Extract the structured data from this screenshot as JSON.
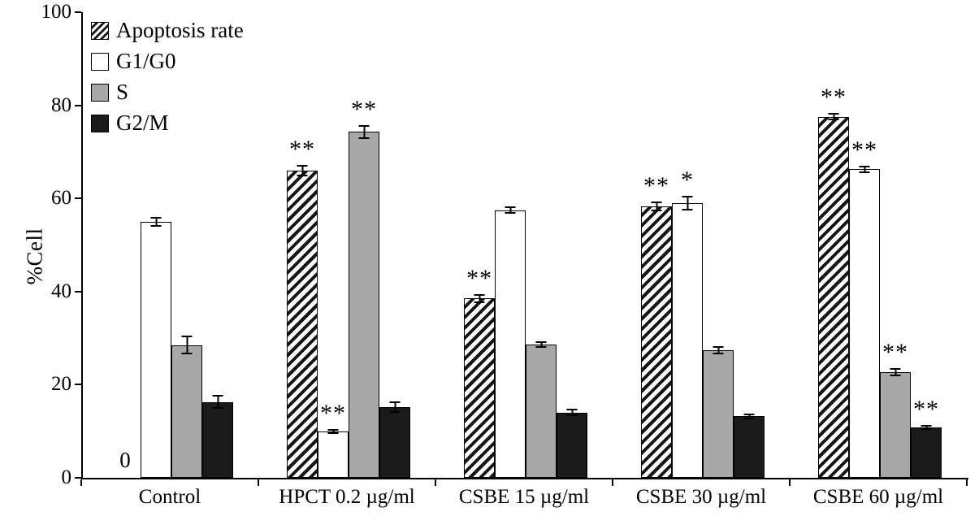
{
  "chart_data": {
    "type": "bar",
    "title": "",
    "xlabel": "",
    "ylabel": "%Cell",
    "ylim": [
      0,
      100
    ],
    "yticks": [
      0,
      20,
      40,
      60,
      80,
      100
    ],
    "grid": false,
    "legend_position": "top-left-inside",
    "categories": [
      "Control",
      "HPCT 0.2 µg/ml",
      "CSBE 15 µg/ml",
      "CSBE 30 µg/ml",
      "CSBE 60 µg/ml"
    ],
    "series": [
      {
        "name": "Apoptosis rate",
        "style": "hatched",
        "values": [
          0,
          66,
          38.5,
          58.3,
          77.5
        ],
        "errors": [
          0,
          1.2,
          1.0,
          1.0,
          0.8
        ],
        "sig": [
          "",
          "**",
          "**",
          "**",
          "**"
        ]
      },
      {
        "name": "G1/G0",
        "style": "white",
        "values": [
          55,
          10,
          57.5,
          59,
          66.3
        ],
        "errors": [
          1.0,
          0.5,
          0.8,
          1.5,
          0.8
        ],
        "sig": [
          "",
          "**",
          "",
          "*",
          "**"
        ]
      },
      {
        "name": "S",
        "style": "gray",
        "values": [
          28.5,
          74.3,
          28.6,
          27.4,
          22.7
        ],
        "errors": [
          2.0,
          1.5,
          0.7,
          0.8,
          0.8
        ],
        "sig": [
          "",
          "**",
          "",
          "",
          "**"
        ]
      },
      {
        "name": "G2/M",
        "style": "black",
        "values": [
          16.3,
          15.2,
          14,
          13.2,
          10.8
        ],
        "errors": [
          1.5,
          1.2,
          0.8,
          0.6,
          0.5
        ],
        "sig": [
          "",
          "",
          "",
          "",
          "**"
        ]
      }
    ],
    "zero_label": "0",
    "colors": {
      "bar_gray": "#a8a8a8",
      "bar_black": "#1a1a1a",
      "bar_white": "#ffffff",
      "hatch_fg": "#151515",
      "axis": "#000000"
    }
  },
  "legend": {
    "items": [
      "Apoptosis rate",
      "G1/G0",
      "S",
      "G2/M"
    ]
  }
}
